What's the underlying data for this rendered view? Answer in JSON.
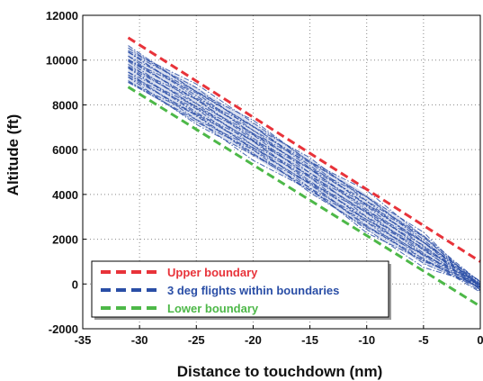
{
  "chart_data": {
    "type": "line",
    "title": "",
    "xlabel": "Distance to touchdown (nm)",
    "ylabel": "Altitude (ft)",
    "xlim": [
      -35,
      0
    ],
    "ylim": [
      -2000,
      12000
    ],
    "xticks": [
      -35,
      -30,
      -25,
      -20,
      -15,
      -10,
      -5,
      0
    ],
    "yticks": [
      -2000,
      0,
      2000,
      4000,
      6000,
      8000,
      10000,
      12000
    ],
    "grid": true,
    "legend_position": "bottom-left",
    "series": [
      {
        "name": "Upper boundary",
        "color": "#e8333a",
        "style": "dashed",
        "x": [
          -31,
          0
        ],
        "y": [
          11000,
          1000
        ]
      },
      {
        "name": "3 deg flights within boundaries",
        "color": "#2a4ea6",
        "style": "dash-dot",
        "band": true,
        "x": [
          -31,
          -25,
          -20,
          -15,
          -10,
          -5,
          0
        ],
        "y_upper": [
          10600,
          8800,
          7200,
          5600,
          4000,
          2200,
          0
        ],
        "y_lower": [
          9000,
          7200,
          5700,
          4100,
          2400,
          900,
          -200
        ]
      },
      {
        "name": "Lower boundary",
        "color": "#4db848",
        "style": "dashed",
        "x": [
          -31,
          0
        ],
        "y": [
          8800,
          -1000
        ]
      }
    ]
  }
}
